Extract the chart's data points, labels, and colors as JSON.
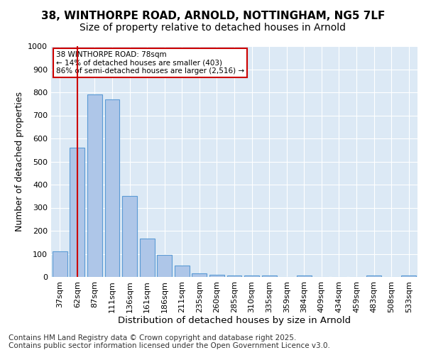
{
  "title_line1": "38, WINTHORPE ROAD, ARNOLD, NOTTINGHAM, NG5 7LF",
  "title_line2": "Size of property relative to detached houses in Arnold",
  "xlabel": "Distribution of detached houses by size in Arnold",
  "ylabel": "Number of detached properties",
  "categories": [
    "37sqm",
    "62sqm",
    "87sqm",
    "111sqm",
    "136sqm",
    "161sqm",
    "186sqm",
    "211sqm",
    "235sqm",
    "260sqm",
    "285sqm",
    "310sqm",
    "335sqm",
    "359sqm",
    "384sqm",
    "409sqm",
    "434sqm",
    "459sqm",
    "483sqm",
    "508sqm",
    "533sqm"
  ],
  "values": [
    110,
    560,
    790,
    770,
    350,
    165,
    95,
    50,
    15,
    10,
    5,
    5,
    5,
    0,
    5,
    0,
    0,
    0,
    5,
    0,
    5
  ],
  "bar_color": "#aec6e8",
  "bar_edge_color": "#5b9bd5",
  "vline_x": 1,
  "vline_color": "#cc0000",
  "annotation_box_text": "38 WINTHORPE ROAD: 78sqm\n← 14% of detached houses are smaller (403)\n86% of semi-detached houses are larger (2,516) →",
  "annotation_box_color": "#cc0000",
  "annotation_bg": "white",
  "ylim": [
    0,
    1000
  ],
  "yticks": [
    0,
    100,
    200,
    300,
    400,
    500,
    600,
    700,
    800,
    900,
    1000
  ],
  "plot_bg": "#dce9f5",
  "footer_line1": "Contains HM Land Registry data © Crown copyright and database right 2025.",
  "footer_line2": "Contains public sector information licensed under the Open Government Licence v3.0.",
  "title_fontsize": 11,
  "subtitle_fontsize": 10,
  "axis_label_fontsize": 9,
  "tick_fontsize": 8,
  "footer_fontsize": 7.5
}
